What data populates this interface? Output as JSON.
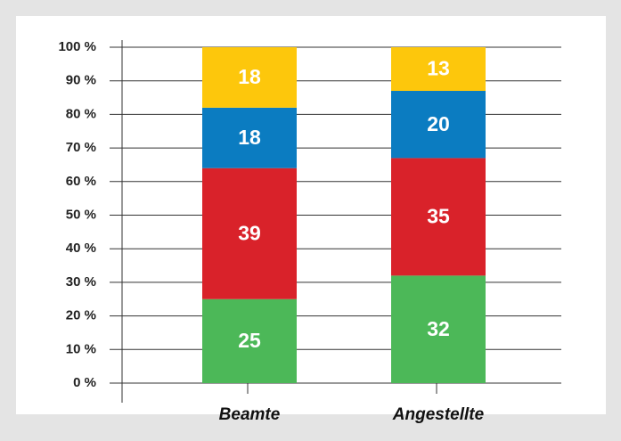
{
  "chart_data": {
    "type": "stacked_bar",
    "categories": [
      "Beamte",
      "Angestellte"
    ],
    "series": [
      {
        "color": "#4cb858",
        "values": [
          25,
          32
        ]
      },
      {
        "color": "#d9222a",
        "values": [
          39,
          35
        ]
      },
      {
        "color": "#0b7cc1",
        "values": [
          18,
          20
        ]
      },
      {
        "color": "#fdc70c",
        "values": [
          18,
          13
        ]
      }
    ],
    "ylim": [
      0,
      100
    ],
    "yticks": [
      {
        "value": 0,
        "label": "0 %"
      },
      {
        "value": 10,
        "label": "10 %"
      },
      {
        "value": 20,
        "label": "20 %"
      },
      {
        "value": 30,
        "label": "30 %"
      },
      {
        "value": 40,
        "label": "40 %"
      },
      {
        "value": 50,
        "label": "50 %"
      },
      {
        "value": 60,
        "label": "60 %"
      },
      {
        "value": 70,
        "label": "70 %"
      },
      {
        "value": 80,
        "label": "80 %"
      },
      {
        "value": 90,
        "label": "90 %"
      },
      {
        "value": 100,
        "label": "100 %"
      }
    ],
    "grid": true
  }
}
